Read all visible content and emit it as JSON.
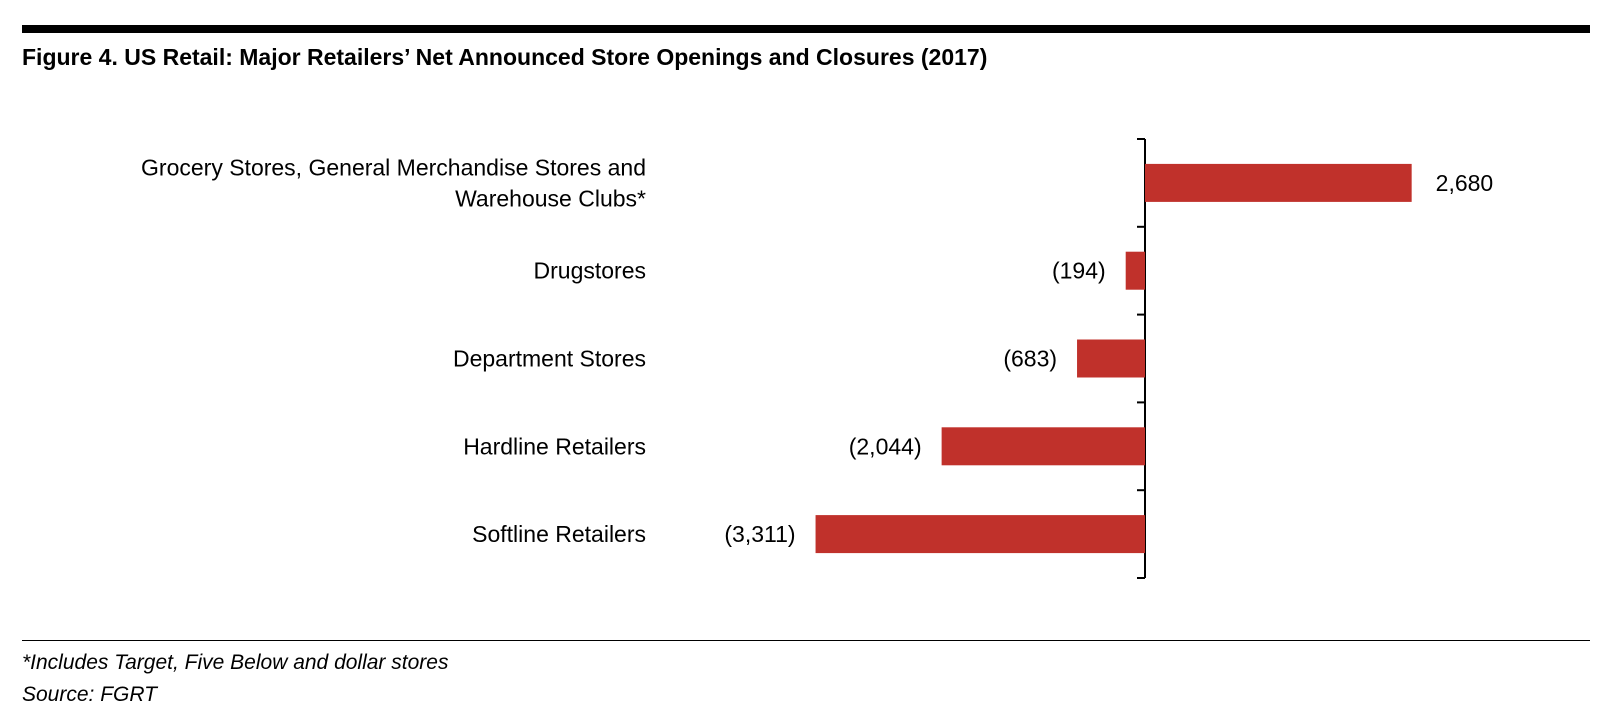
{
  "title": "Figure 4. US Retail: Major Retailers’ Net Announced Store Openings and Closures (2017)",
  "footnote": "*Includes Target, Five Below and dollar stores",
  "source": "Source: FGRT",
  "colors": {
    "bar": "#C0312B",
    "text": "#000000",
    "rule": "#000000"
  },
  "chart_data": {
    "type": "bar",
    "orientation": "horizontal",
    "title": "Figure 4. US Retail: Major Retailers’ Net Announced Store Openings and Closures (2017)",
    "categories": [
      [
        "Grocery Stores, General Merchandise Stores and",
        "Warehouse Clubs*"
      ],
      [
        "Drugstores"
      ],
      [
        "Department Stores"
      ],
      [
        "Hardline Retailers"
      ],
      [
        "Softline Retailers"
      ]
    ],
    "values": [
      2680,
      -194,
      -683,
      -2044,
      -3311
    ],
    "data_labels": [
      "2,680",
      "(194)",
      "(683)",
      "(2,044)",
      "(3,311)"
    ],
    "xlabel": "",
    "ylabel": "",
    "grid": false,
    "legend": "none"
  }
}
